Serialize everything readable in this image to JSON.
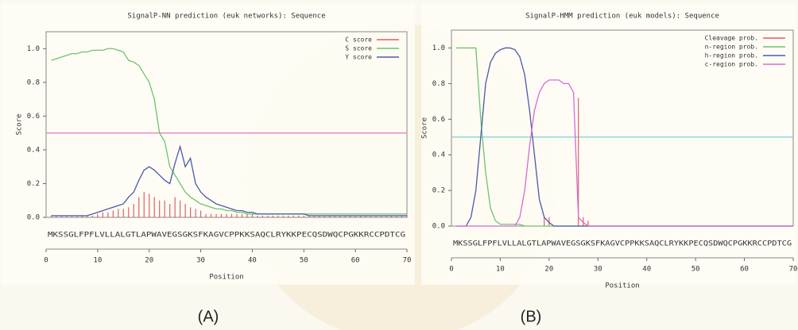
{
  "chart_data": [
    {
      "type": "line",
      "title": "SignalP-NN prediction (euk networks): Sequence",
      "x_label": "Position",
      "y_label": "Score",
      "panel": "(A)",
      "sequence": "MKSSGLFPFLVLLALGTLAPWAVEGSGKSFKAGVCPPKKSAQCLRYKKPECQSDWQCPGKKRCCPDTCG",
      "xlim": [
        0,
        70
      ],
      "ylim": [
        0,
        1.1
      ],
      "xticks": [
        0,
        10,
        20,
        30,
        40,
        50,
        60,
        70
      ],
      "yticks": [
        {
          "value": 0,
          "label": "0.0"
        },
        0.2,
        0.4,
        0.6,
        0.8,
        {
          "value": 1,
          "label": "1.0"
        }
      ],
      "threshold": 0.5,
      "threshold_color": "#e889c4",
      "legend": "top-right",
      "x": [
        1,
        2,
        3,
        4,
        5,
        6,
        7,
        8,
        9,
        10,
        11,
        12,
        13,
        14,
        15,
        16,
        17,
        18,
        19,
        20,
        21,
        22,
        23,
        24,
        25,
        26,
        27,
        28,
        29,
        30,
        31,
        32,
        33,
        34,
        35,
        36,
        37,
        38,
        39,
        40,
        41,
        42,
        43,
        44,
        45,
        46,
        47,
        48,
        49,
        50,
        51,
        52,
        53,
        54,
        55,
        56,
        57,
        58,
        59,
        60,
        61,
        62,
        63,
        64,
        65,
        66,
        67,
        68,
        69,
        70
      ],
      "series": [
        {
          "name": "C score",
          "color": "#e06060",
          "style": "impulse",
          "values": [
            0.01,
            0.01,
            0.01,
            0.01,
            0.01,
            0.01,
            0.01,
            0.01,
            0.01,
            0.02,
            0.03,
            0.03,
            0.04,
            0.05,
            0.05,
            0.06,
            0.08,
            0.12,
            0.15,
            0.14,
            0.12,
            0.1,
            0.1,
            0.08,
            0.12,
            0.1,
            0.08,
            0.06,
            0.05,
            0.04,
            0.02,
            0.02,
            0.02,
            0.02,
            0.02,
            0.02,
            0.02,
            0.02,
            0.02,
            0.02,
            0.01,
            0.01,
            0.01,
            0.01,
            0.01,
            0.01,
            0.01,
            0.01,
            0.01,
            0.01,
            0.01,
            0.01,
            0.01,
            0.01,
            0.01,
            0.01,
            0.01,
            0.01,
            0.01,
            0.01,
            0.01,
            0.01,
            0.01,
            0.01,
            0.01,
            0.01,
            0.01,
            0.01,
            0.01,
            0.01
          ]
        },
        {
          "name": "S score",
          "color": "#6cc46c",
          "style": "line",
          "values": [
            0.93,
            0.94,
            0.95,
            0.96,
            0.97,
            0.97,
            0.98,
            0.98,
            0.99,
            0.99,
            0.99,
            1.0,
            1.0,
            0.99,
            0.98,
            0.93,
            0.92,
            0.9,
            0.85,
            0.8,
            0.7,
            0.5,
            0.45,
            0.3,
            0.25,
            0.2,
            0.15,
            0.12,
            0.1,
            0.08,
            0.07,
            0.06,
            0.05,
            0.05,
            0.04,
            0.04,
            0.03,
            0.03,
            0.02,
            0.02,
            0.02,
            0.02,
            0.02,
            0.02,
            0.02,
            0.02,
            0.02,
            0.02,
            0.02,
            0.02,
            0.02,
            0.02,
            0.02,
            0.02,
            0.02,
            0.02,
            0.02,
            0.02,
            0.02,
            0.02,
            0.02,
            0.02,
            0.02,
            0.02,
            0.02,
            0.02,
            0.02,
            0.02,
            0.02,
            0.02
          ]
        },
        {
          "name": "Y score",
          "color": "#4a5aa8",
          "style": "line",
          "values": [
            0.01,
            0.01,
            0.01,
            0.01,
            0.01,
            0.01,
            0.01,
            0.01,
            0.02,
            0.03,
            0.04,
            0.05,
            0.06,
            0.07,
            0.08,
            0.12,
            0.15,
            0.22,
            0.28,
            0.3,
            0.28,
            0.25,
            0.22,
            0.2,
            0.32,
            0.42,
            0.3,
            0.35,
            0.2,
            0.15,
            0.12,
            0.1,
            0.08,
            0.07,
            0.06,
            0.05,
            0.04,
            0.04,
            0.03,
            0.03,
            0.02,
            0.02,
            0.02,
            0.02,
            0.02,
            0.02,
            0.02,
            0.02,
            0.02,
            0.02,
            0.01,
            0.01,
            0.01,
            0.01,
            0.01,
            0.01,
            0.01,
            0.01,
            0.01,
            0.01,
            0.01,
            0.01,
            0.01,
            0.01,
            0.01,
            0.01,
            0.01,
            0.01,
            0.01,
            0.01
          ]
        }
      ]
    },
    {
      "type": "line",
      "title": "SignalP-HMM prediction (euk models): Sequence",
      "x_label": "Position",
      "y_label": "Score",
      "panel": "(B)",
      "sequence": "MKSSGLFPFLVLLALGTLAPWAVEGSGKSFKAGVCPPKKSAQCLRYKKPECQSDWQCPGKKRCCPDTCG",
      "xlim": [
        0,
        70
      ],
      "ylim": [
        0,
        1.1
      ],
      "xticks": [
        0,
        10,
        20,
        30,
        40,
        50,
        60,
        70
      ],
      "yticks": [
        {
          "value": 0,
          "label": "0.0"
        },
        0.2,
        0.4,
        0.6,
        0.8,
        {
          "value": 1,
          "label": "1.0"
        }
      ],
      "threshold": 0.5,
      "threshold_color": "#8fd8d8",
      "legend": "top-right",
      "x": [
        1,
        2,
        3,
        4,
        5,
        6,
        7,
        8,
        9,
        10,
        11,
        12,
        13,
        14,
        15,
        16,
        17,
        18,
        19,
        20,
        21,
        22,
        23,
        24,
        25,
        26,
        27,
        28,
        29,
        30,
        31,
        32,
        33,
        34,
        35,
        36,
        37,
        38,
        39,
        40,
        41,
        42,
        43,
        44,
        45,
        46,
        47,
        48,
        49,
        50,
        51,
        52,
        53,
        54,
        55,
        56,
        57,
        58,
        59,
        60,
        61,
        62,
        63,
        64,
        65,
        66,
        67,
        68,
        69,
        70
      ],
      "series": [
        {
          "name": "Cleavage prob.",
          "color": "#e06060",
          "style": "impulse",
          "values": [
            0,
            0,
            0,
            0,
            0,
            0,
            0,
            0,
            0,
            0,
            0,
            0,
            0,
            0,
            0,
            0,
            0,
            0,
            0.05,
            0.05,
            0,
            0,
            0,
            0,
            0,
            0.72,
            0.05,
            0.03,
            0,
            0,
            0,
            0,
            0,
            0,
            0,
            0,
            0,
            0,
            0,
            0,
            0,
            0,
            0,
            0,
            0,
            0,
            0,
            0,
            0,
            0,
            0,
            0,
            0,
            0,
            0,
            0,
            0,
            0,
            0,
            0,
            0,
            0,
            0,
            0,
            0,
            0,
            0,
            0,
            0,
            0
          ]
        },
        {
          "name": "n-region prob.",
          "color": "#6cc46c",
          "style": "line",
          "values": [
            1.0,
            1.0,
            1.0,
            1.0,
            1.0,
            0.6,
            0.3,
            0.1,
            0.03,
            0.01,
            0.01,
            0.01,
            0.01,
            0.01,
            0,
            0,
            0,
            0,
            0,
            0,
            0,
            0,
            0,
            0,
            0,
            0,
            0,
            0,
            0,
            0,
            0,
            0,
            0,
            0,
            0,
            0,
            0,
            0,
            0,
            0,
            0,
            0,
            0,
            0,
            0,
            0,
            0,
            0,
            0,
            0,
            0,
            0,
            0,
            0,
            0,
            0,
            0,
            0,
            0,
            0,
            0,
            0,
            0,
            0,
            0,
            0,
            0,
            0,
            0,
            0
          ]
        },
        {
          "name": "h-region prob.",
          "color": "#4a5aa8",
          "style": "line",
          "values": [
            0,
            0,
            0,
            0.05,
            0.2,
            0.5,
            0.8,
            0.92,
            0.97,
            0.99,
            1.0,
            1.0,
            0.99,
            0.95,
            0.85,
            0.65,
            0.4,
            0.15,
            0.05,
            0.02,
            0,
            0,
            0,
            0,
            0,
            0,
            0,
            0,
            0,
            0,
            0,
            0,
            0,
            0,
            0,
            0,
            0,
            0,
            0,
            0,
            0,
            0,
            0,
            0,
            0,
            0,
            0,
            0,
            0,
            0,
            0,
            0,
            0,
            0,
            0,
            0,
            0,
            0,
            0,
            0,
            0,
            0,
            0,
            0,
            0,
            0,
            0,
            0,
            0,
            0
          ]
        },
        {
          "name": "c-region prob.",
          "color": "#d86ad0",
          "style": "line",
          "values": [
            0,
            0,
            0,
            0,
            0,
            0,
            0,
            0,
            0,
            0,
            0,
            0,
            0,
            0.05,
            0.2,
            0.45,
            0.65,
            0.75,
            0.8,
            0.82,
            0.82,
            0.82,
            0.8,
            0.8,
            0.75,
            0.05,
            0.02,
            0,
            0,
            0,
            0,
            0,
            0,
            0,
            0,
            0,
            0,
            0,
            0,
            0,
            0,
            0,
            0,
            0,
            0,
            0,
            0,
            0,
            0,
            0,
            0,
            0,
            0,
            0,
            0,
            0,
            0,
            0,
            0,
            0,
            0,
            0,
            0,
            0,
            0,
            0,
            0,
            0,
            0,
            0
          ]
        }
      ]
    }
  ]
}
